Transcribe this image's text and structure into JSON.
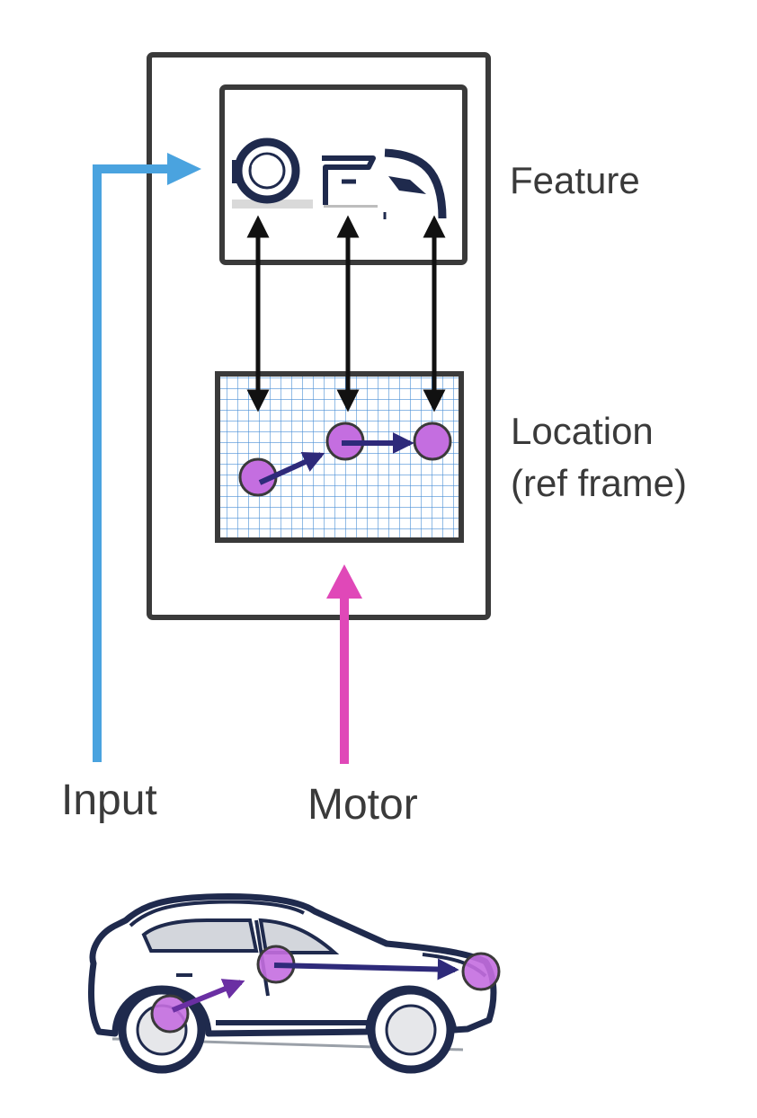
{
  "labels": {
    "feature": "Feature",
    "location_line1": "Location",
    "location_line2": "(ref frame)",
    "input": "Input",
    "motor": "Motor"
  },
  "colors": {
    "box_stroke": "#3a3a3a",
    "input_arrow": "#4aa3df",
    "motor_arrow": "#e048b8",
    "grid_line": "#4a8fd6",
    "node_fill": "#c46ee0",
    "node_stroke": "#3a3a3a",
    "path_arrow": "#2e2a7a",
    "car_outline": "#1f2a4d",
    "car_path_arrow": "#6a2fa3"
  },
  "icons": {
    "feature_parts": [
      "wheel-icon",
      "door-icon",
      "headlight-icon"
    ],
    "car": "car-icon"
  }
}
